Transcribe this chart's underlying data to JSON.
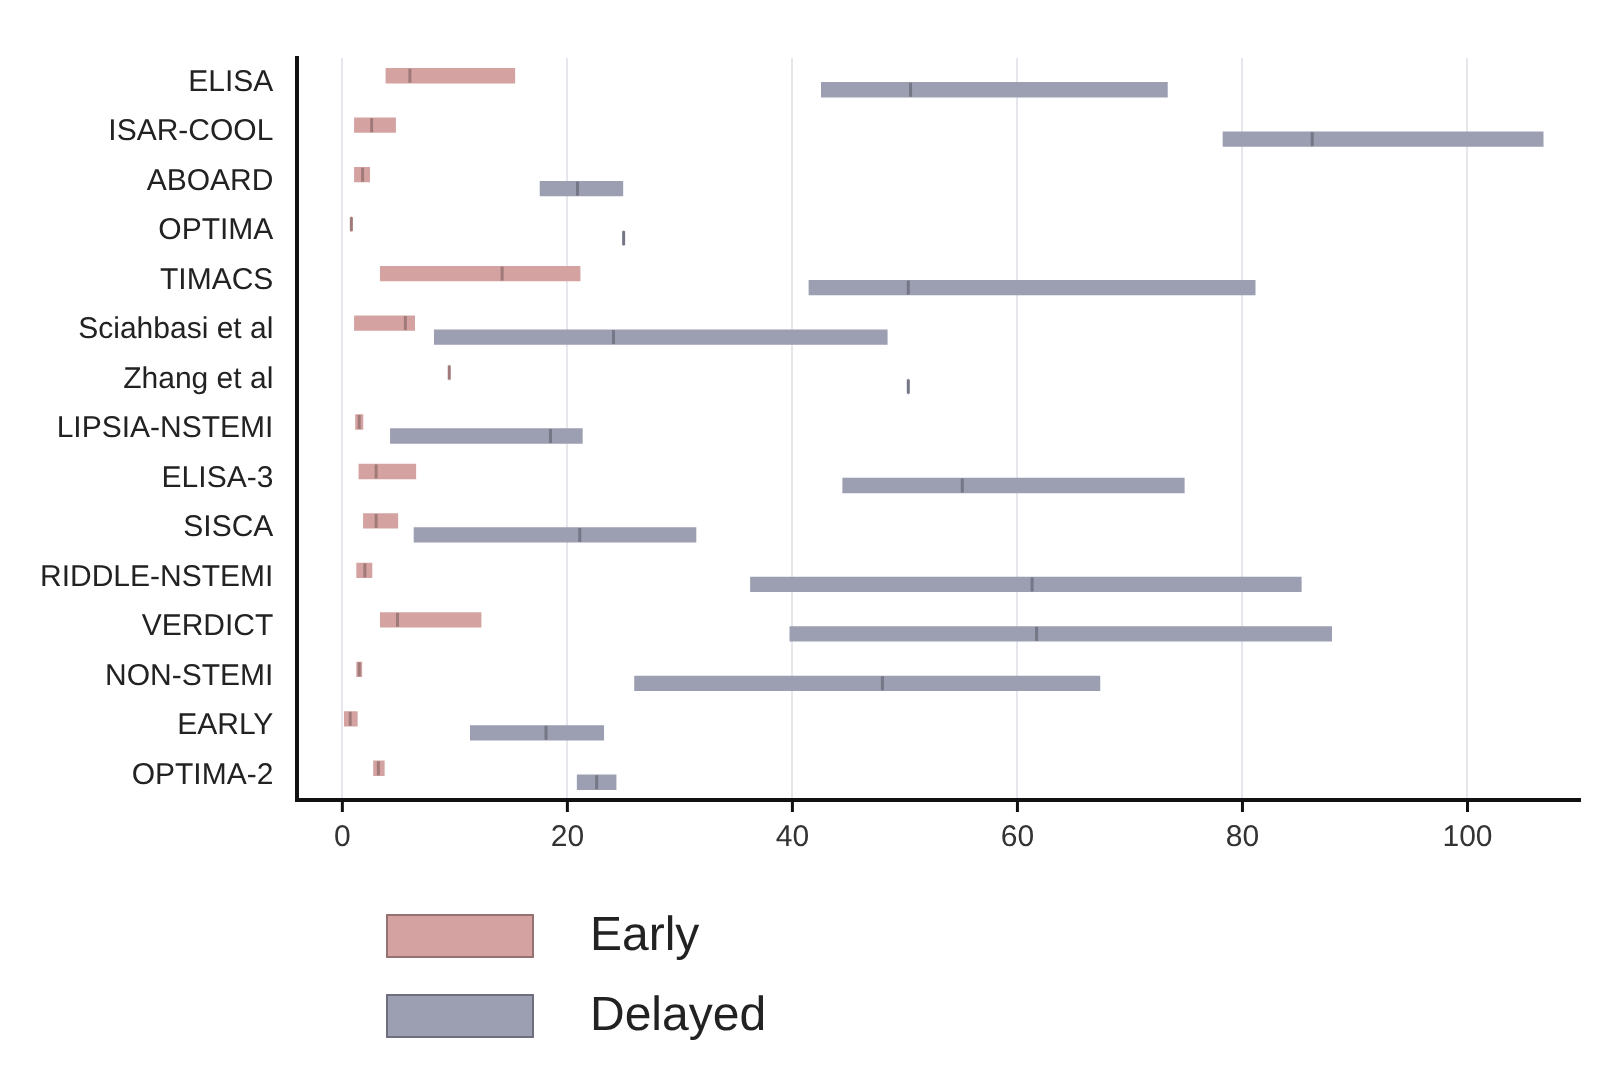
{
  "chart_data": {
    "type": "box",
    "orientation": "horizontal",
    "categories": [
      "ELISA",
      "ISAR-COOL",
      "ABOARD",
      "OPTIMA",
      "TIMACS",
      "Sciahbasi et al",
      "Zhang et al",
      "LIPSIA-NSTEMI",
      "ELISA-3",
      "SISCA",
      "RIDDLE-NSTEMI",
      "VERDICT",
      "NON-STEMI",
      "EARLY",
      "OPTIMA-2"
    ],
    "xlim": [
      -4,
      110
    ],
    "xticks": [
      0,
      20,
      40,
      60,
      80,
      100
    ],
    "grid": "x",
    "legend": "bottom",
    "series": [
      {
        "name": "Early",
        "color": "#d4a3a1",
        "boxes": [
          {
            "low": 3.9,
            "q1": 3.9,
            "median": 6,
            "q3": 15.3,
            "high": 15.3
          },
          {
            "low": 1.1,
            "q1": 1.1,
            "median": 2.6,
            "q3": 4.7,
            "high": 4.7
          },
          {
            "low": 1.1,
            "q1": 1.1,
            "median": 1.8,
            "q3": 2.4,
            "high": 2.4
          },
          {
            "low": 0.8,
            "q1": 0.8,
            "median": 0.8,
            "q3": 0.8,
            "high": 0.8
          },
          {
            "low": 3.4,
            "q1": 3.4,
            "median": 14.2,
            "q3": 21.1,
            "high": 21.1
          },
          {
            "low": 1.1,
            "q1": 1.1,
            "median": 5.6,
            "q3": 6.4,
            "high": 6.4
          },
          {
            "low": 9.5,
            "q1": 9.5,
            "median": 9.5,
            "q3": 9.5,
            "high": 9.5
          },
          {
            "low": 1.2,
            "q1": 1.2,
            "median": 1.5,
            "q3": 1.8,
            "high": 1.8
          },
          {
            "low": 1.5,
            "q1": 1.5,
            "median": 3,
            "q3": 6.5,
            "high": 6.5
          },
          {
            "low": 1.9,
            "q1": 1.9,
            "median": 3,
            "q3": 4.9,
            "high": 4.9
          },
          {
            "low": 1.3,
            "q1": 1.3,
            "median": 2,
            "q3": 2.6,
            "high": 2.6
          },
          {
            "low": 3.4,
            "q1": 3.4,
            "median": 4.9,
            "q3": 12.3,
            "high": 12.3
          },
          {
            "low": 1.3,
            "q1": 1.3,
            "median": 1.5,
            "q3": 1.7,
            "high": 1.7
          },
          {
            "low": 0.2,
            "q1": 0.2,
            "median": 0.7,
            "q3": 1.3,
            "high": 1.3
          },
          {
            "low": 2.8,
            "q1": 2.8,
            "median": 3.2,
            "q3": 3.7,
            "high": 3.7
          }
        ]
      },
      {
        "name": "Delayed",
        "color": "#9c9eb2",
        "boxes": [
          {
            "low": 42.6,
            "q1": 42.6,
            "median": 50.5,
            "q3": 73.3,
            "high": 73.3
          },
          {
            "low": 78.3,
            "q1": 78.3,
            "median": 86.2,
            "q3": 106.7,
            "high": 106.7
          },
          {
            "low": 17.6,
            "q1": 17.6,
            "median": 20.9,
            "q3": 24.9,
            "high": 24.9
          },
          {
            "low": 25,
            "q1": 25,
            "median": 25,
            "q3": 25,
            "high": 25
          },
          {
            "low": 41.5,
            "q1": 41.5,
            "median": 50.3,
            "q3": 81.1,
            "high": 81.1
          },
          {
            "low": 8.2,
            "q1": 8.2,
            "median": 24.1,
            "q3": 48.4,
            "high": 48.4
          },
          {
            "low": 50.3,
            "q1": 50.3,
            "median": 50.3,
            "q3": 50.3,
            "high": 50.3
          },
          {
            "low": 4.3,
            "q1": 4.3,
            "median": 18.5,
            "q3": 21.3,
            "high": 21.3
          },
          {
            "low": 44.5,
            "q1": 44.5,
            "median": 55.1,
            "q3": 74.8,
            "high": 74.8
          },
          {
            "low": 6.4,
            "q1": 6.4,
            "median": 21.1,
            "q3": 31.4,
            "high": 31.4
          },
          {
            "low": 36.3,
            "q1": 36.3,
            "median": 61.3,
            "q3": 85.2,
            "high": 85.2
          },
          {
            "low": 39.8,
            "q1": 39.8,
            "median": 61.7,
            "q3": 87.9,
            "high": 87.9
          },
          {
            "low": 26,
            "q1": 26,
            "median": 48,
            "q3": 67.3,
            "high": 67.3
          },
          {
            "low": 11.4,
            "q1": 11.4,
            "median": 18.1,
            "q3": 23.2,
            "high": 23.2
          },
          {
            "low": 20.9,
            "q1": 20.9,
            "median": 22.6,
            "q3": 24.3,
            "high": 24.3
          }
        ]
      }
    ]
  }
}
